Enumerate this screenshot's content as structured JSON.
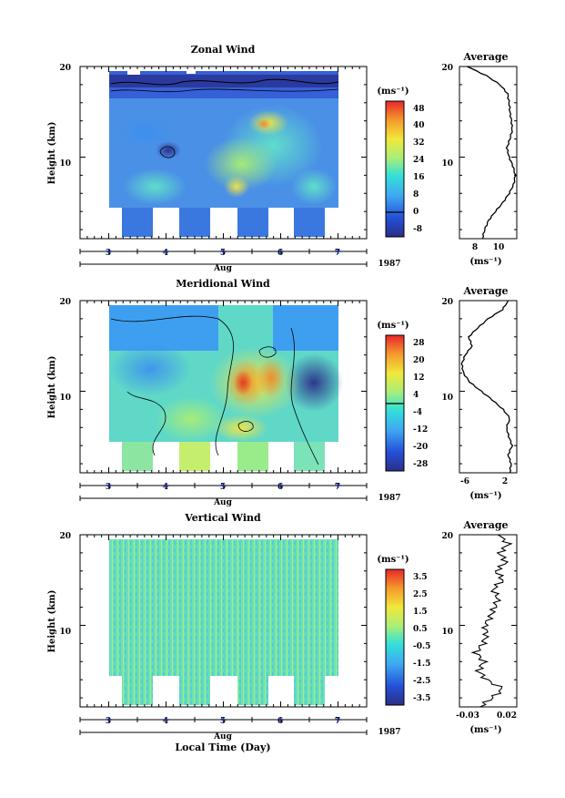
{
  "chart_data": [
    {
      "type": "heatmap",
      "title": "Zonal Wind",
      "xlabel": "Aug",
      "year": "1987",
      "ylabel": "Height (km)",
      "xlim": [
        2.5,
        7.5
      ],
      "ylim": [
        1,
        20
      ],
      "x_ticks": [
        "3",
        "4",
        "5",
        "6",
        "7"
      ],
      "y_ticks": [
        "10",
        "20"
      ],
      "colorbar": {
        "unit": "(ms⁻¹)",
        "min": -8,
        "max": 50,
        "ticks": [
          "48",
          "40",
          "32",
          "24",
          "16",
          "8",
          "0",
          "-8"
        ]
      },
      "profile": {
        "title": "Average",
        "xlim": [
          5.5,
          13
        ],
        "x_ticks": [
          "8",
          "10"
        ],
        "xlabel": "(ms⁻¹)",
        "x": [
          8.5,
          8.8,
          9.3,
          10.2,
          11.2,
          12.0,
          12.6,
          12.8,
          12.5,
          12.0,
          11.7,
          12.1,
          12.4,
          12.3,
          12.1,
          12.0,
          11.8,
          10.8,
          9.0,
          6.5
        ],
        "y": [
          1,
          2,
          3,
          4,
          5,
          6,
          7,
          8,
          9,
          10,
          11,
          12,
          13,
          14,
          15,
          16,
          17,
          18,
          19,
          20
        ]
      }
    },
    {
      "type": "heatmap",
      "title": "Meridional Wind",
      "xlabel": "Aug",
      "year": "1987",
      "ylabel": "Height (km)",
      "xlim": [
        2.5,
        7.5
      ],
      "ylim": [
        1,
        20
      ],
      "x_ticks": [
        "3",
        "4",
        "5",
        "6",
        "7"
      ],
      "y_ticks": [
        "10",
        "20"
      ],
      "colorbar": {
        "unit": "(ms⁻¹)",
        "min": -30,
        "max": 30,
        "ticks": [
          "28",
          "20",
          "12",
          "4",
          "-4",
          "-12",
          "-20",
          "-28"
        ]
      },
      "profile": {
        "title": "Average",
        "xlim": [
          -7,
          3
        ],
        "x_ticks": [
          "-6",
          "2"
        ],
        "xlabel": "(ms⁻¹)",
        "x": [
          1.8,
          2.0,
          1.5,
          2.2,
          1.6,
          1.2,
          1.8,
          0.6,
          -1.2,
          -3.2,
          -5.2,
          -6.3,
          -6.6,
          -6.0,
          -4.8,
          -5.4,
          -3.8,
          -2.0,
          0.5,
          1.5
        ],
        "y": [
          1,
          2,
          3,
          4,
          5,
          6,
          7,
          8,
          9,
          10,
          11,
          12,
          13,
          14,
          15,
          16,
          17,
          18,
          19,
          20
        ]
      }
    },
    {
      "type": "heatmap",
      "title": "Vertical Wind",
      "xlabel": "Aug",
      "year": "1987",
      "ylabel": "Height (km)",
      "xlim": [
        2.5,
        7.5
      ],
      "ylim": [
        1,
        20
      ],
      "x_ticks": [
        "3",
        "4",
        "5",
        "6",
        "7"
      ],
      "y_ticks": [
        "10",
        "20"
      ],
      "colorbar": {
        "unit": "(ms⁻¹)",
        "min": -4,
        "max": 4,
        "ticks": [
          "3.5",
          "2.5",
          "1.5",
          "0.5",
          "-0.5",
          "-1.5",
          "-2.5",
          "-3.5"
        ]
      },
      "profile": {
        "title": "Average",
        "xlim": [
          -0.035,
          0.035
        ],
        "x_ticks": [
          "-0.03",
          "0.02"
        ],
        "xlabel": "(ms⁻¹)",
        "x": [
          -0.01,
          0.005,
          0.018,
          -0.002,
          -0.012,
          -0.005,
          -0.015,
          -0.006,
          -0.002,
          -0.004,
          0.003,
          0.008,
          0.012,
          0.006,
          0.018,
          0.01,
          0.022,
          0.014,
          0.025,
          0.012
        ],
        "y": [
          1,
          2,
          3,
          4,
          5,
          6,
          7,
          8,
          9,
          10,
          11,
          12,
          13,
          14,
          15,
          16,
          17,
          18,
          19,
          20
        ]
      }
    }
  ],
  "bottom_xlabel": "Local Time (Day)"
}
